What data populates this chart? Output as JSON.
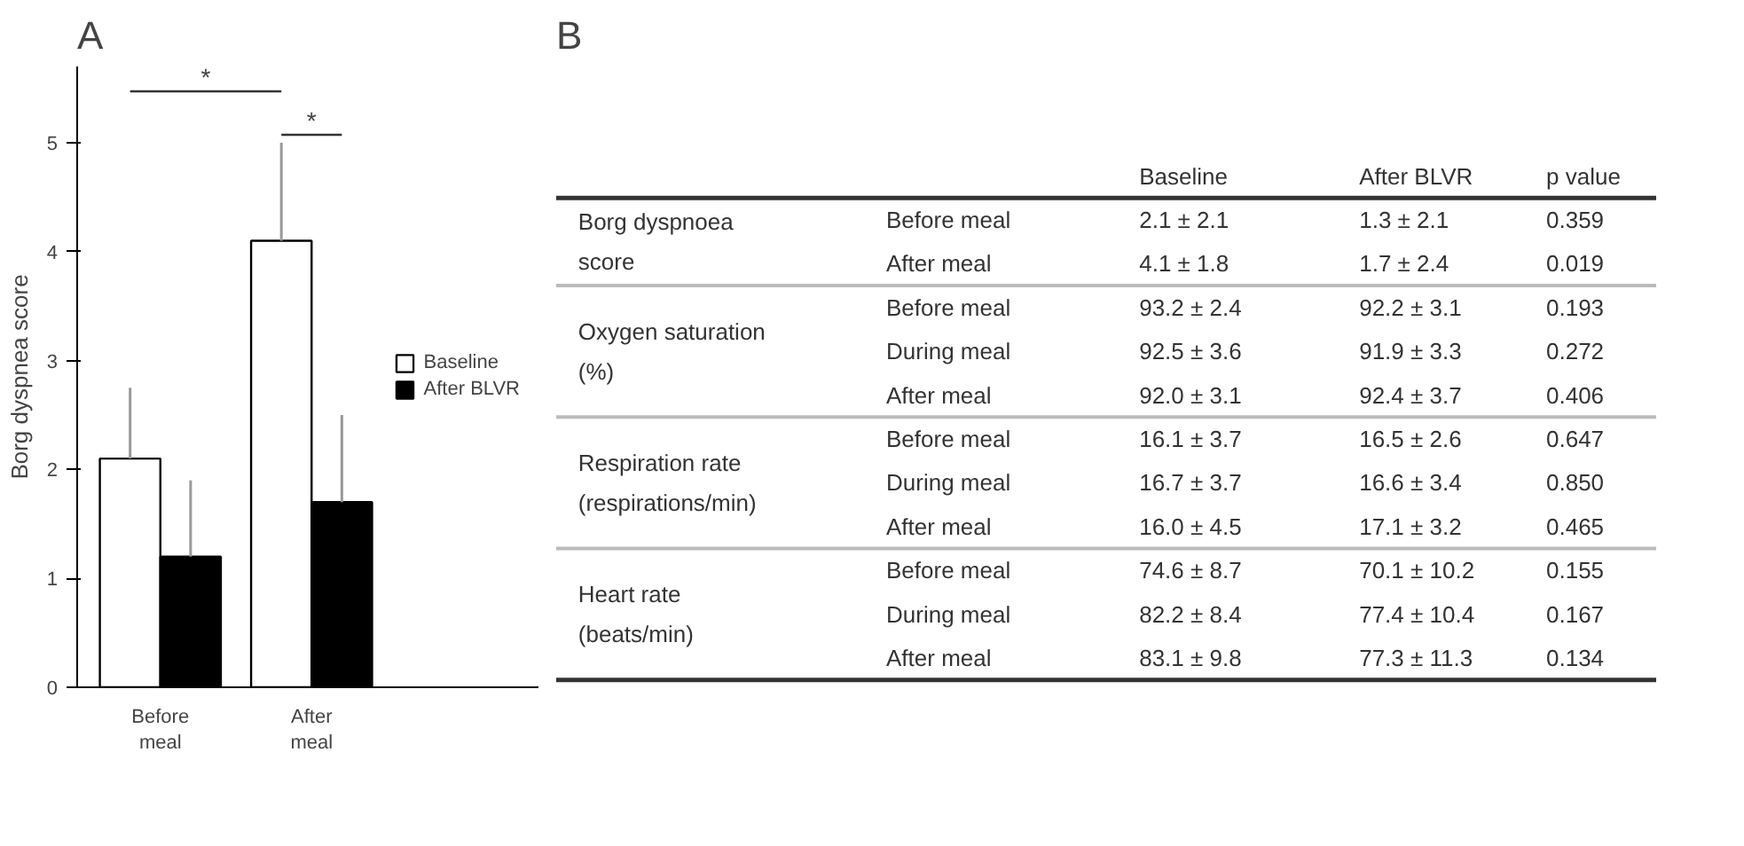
{
  "chart_data": [
    {
      "type": "bar",
      "title": "A",
      "ylabel": "Borg dyspnea score",
      "categories": [
        "Before meal",
        "After meal"
      ],
      "series": [
        {
          "name": "Baseline",
          "color": "#ffffff",
          "values": [
            2.1,
            4.1
          ],
          "errors": [
            [
              2.1,
              2.75
            ],
            [
              4.1,
              5.0
            ]
          ]
        },
        {
          "name": "After BLVR",
          "color": "#000000",
          "values": [
            1.2,
            1.7
          ],
          "errors": [
            [
              1.2,
              1.9
            ],
            [
              1.7,
              2.5
            ]
          ]
        }
      ],
      "ylim": [
        0,
        5.7
      ],
      "yticks": [
        0,
        1,
        2,
        3,
        4,
        5
      ],
      "grid": false,
      "legend": "right",
      "annotations": [
        "*",
        "*"
      ]
    },
    {
      "type": "other",
      "title": "B",
      "annotations": [
        "Baseline",
        "After BLVR",
        "p value",
        "Borg dyspnoea\nscore",
        "Before meal",
        "2.1 ± 2.1",
        "1.3 ± 2.1",
        "0.359",
        "After meal",
        "4.1 ± 1.8",
        "1.7 ± 2.4",
        "0.019",
        "Oxygen saturation\n(%)",
        "Before meal",
        "93.2 ± 2.4",
        "92.2 ± 3.1",
        "0.193",
        "During meal",
        "92.5 ± 3.6",
        "91.9 ± 3.3",
        "0.272",
        "After meal",
        "92.0 ± 3.1",
        "92.4 ± 3.7",
        "0.406",
        "Respiration rate\n(respirations/min)",
        "Before meal",
        "16.1 ± 3.7",
        "16.5 ± 2.6",
        "0.647",
        "During meal",
        "16.7 ± 3.7",
        "16.6 ± 3.4",
        "0.850",
        "After meal",
        "16.0 ± 4.5",
        "17.1 ± 3.2",
        "0.465",
        "Heart rate\n(beats/min)",
        "Before meal",
        "74.6 ± 8.7",
        "70.1 ± 10.2",
        "0.155",
        "During meal",
        "82.2 ± 8.4",
        "77.4 ± 10.4",
        "0.167",
        "After meal",
        "83.1 ± 9.8",
        "77.3 ± 11.3",
        "0.134"
      ]
    }
  ]
}
